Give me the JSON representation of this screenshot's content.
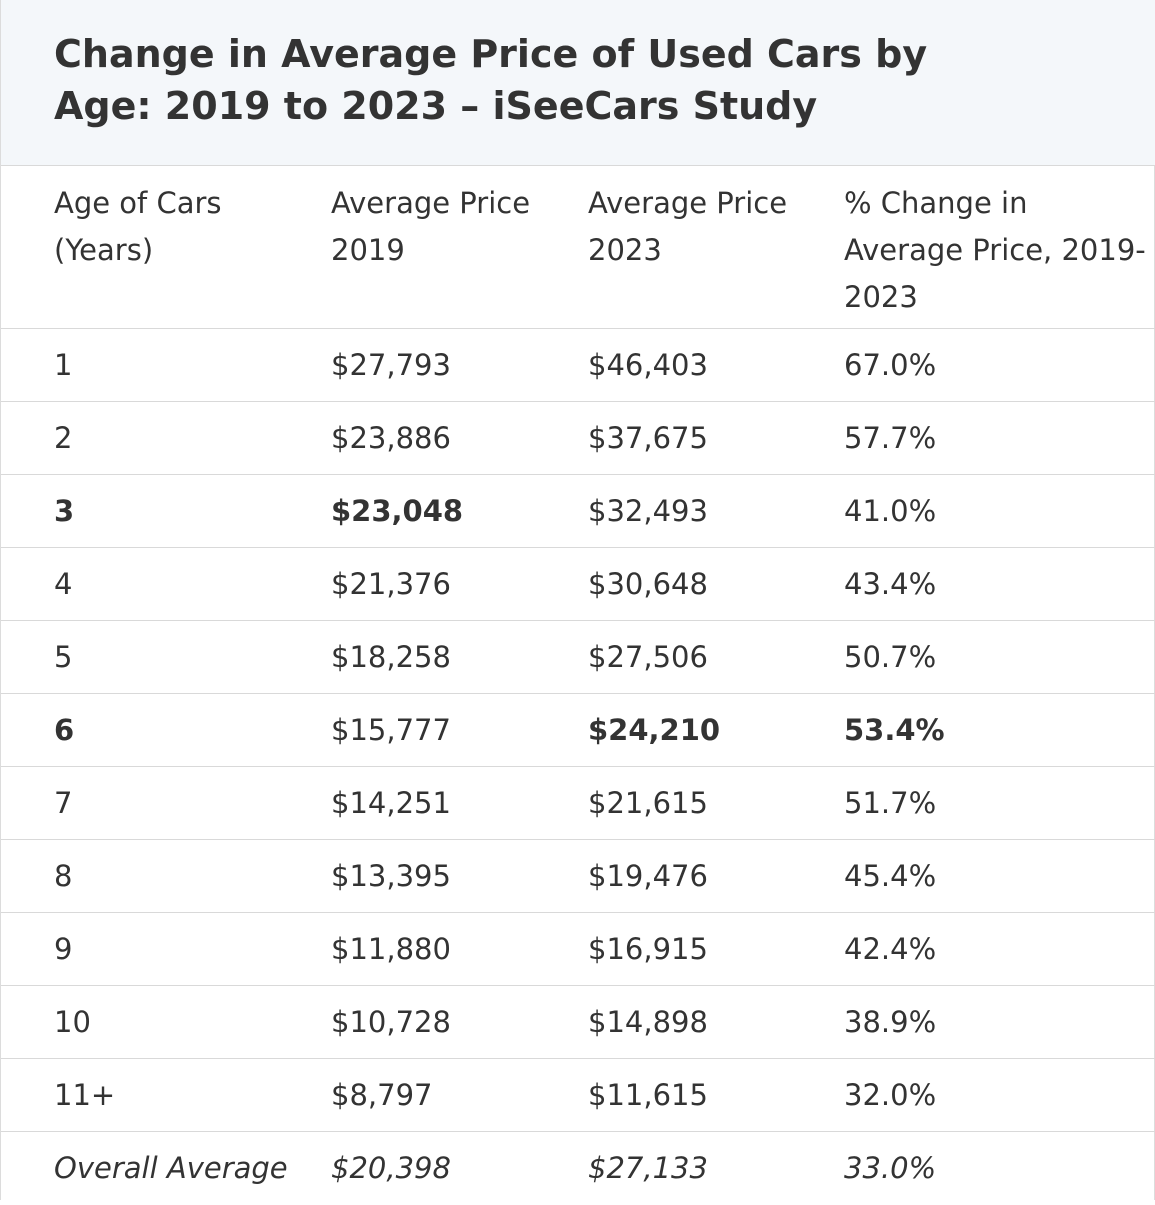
{
  "chart_data": {
    "type": "table",
    "title": "Change in Average Price of Used Cars by Age: 2019 to 2023 – iSeeCars Study",
    "title_lines": [
      "Change in Average Price of Used Cars by",
      "Age: 2019 to 2023 – iSeeCars Study"
    ],
    "columns": [
      {
        "lines": [
          "Age of Cars",
          "(Years)"
        ]
      },
      {
        "lines": [
          "Average Price",
          "2019"
        ]
      },
      {
        "lines": [
          "Average Price",
          "2023"
        ]
      },
      {
        "lines": [
          "% Change in",
          "Average Price, 2019-",
          "2023"
        ]
      }
    ],
    "rows": [
      {
        "age": "1",
        "price_2019": "$27,793",
        "price_2023": "$46,403",
        "pct_change": "67.0%",
        "bold": []
      },
      {
        "age": "2",
        "price_2019": "$23,886",
        "price_2023": "$37,675",
        "pct_change": "57.7%",
        "bold": []
      },
      {
        "age": "3",
        "price_2019": "$23,048",
        "price_2023": "$32,493",
        "pct_change": "41.0%",
        "bold": [
          "age",
          "price_2019"
        ]
      },
      {
        "age": "4",
        "price_2019": "$21,376",
        "price_2023": "$30,648",
        "pct_change": "43.4%",
        "bold": []
      },
      {
        "age": "5",
        "price_2019": "$18,258",
        "price_2023": "$27,506",
        "pct_change": "50.7%",
        "bold": []
      },
      {
        "age": "6",
        "price_2019": "$15,777",
        "price_2023": "$24,210",
        "pct_change": "53.4%",
        "bold": [
          "age",
          "price_2023",
          "pct_change"
        ]
      },
      {
        "age": "7",
        "price_2019": "$14,251",
        "price_2023": "$21,615",
        "pct_change": "51.7%",
        "bold": []
      },
      {
        "age": "8",
        "price_2019": "$13,395",
        "price_2023": "$19,476",
        "pct_change": "45.4%",
        "bold": []
      },
      {
        "age": "9",
        "price_2019": "$11,880",
        "price_2023": "$16,915",
        "pct_change": "42.4%",
        "bold": []
      },
      {
        "age": "10",
        "price_2019": "$10,728",
        "price_2023": "$14,898",
        "pct_change": "38.9%",
        "bold": []
      },
      {
        "age": "11+",
        "price_2019": "$8,797",
        "price_2023": "$11,615",
        "pct_change": "32.0%",
        "bold": []
      }
    ],
    "footer": {
      "age": "Overall Average",
      "price_2019": "$20,398",
      "price_2023": "$27,133",
      "pct_change": "33.0%"
    }
  },
  "colors": {
    "text": "#333333",
    "title_bg": "#f4f7fa",
    "border": "#d9d9d9"
  }
}
